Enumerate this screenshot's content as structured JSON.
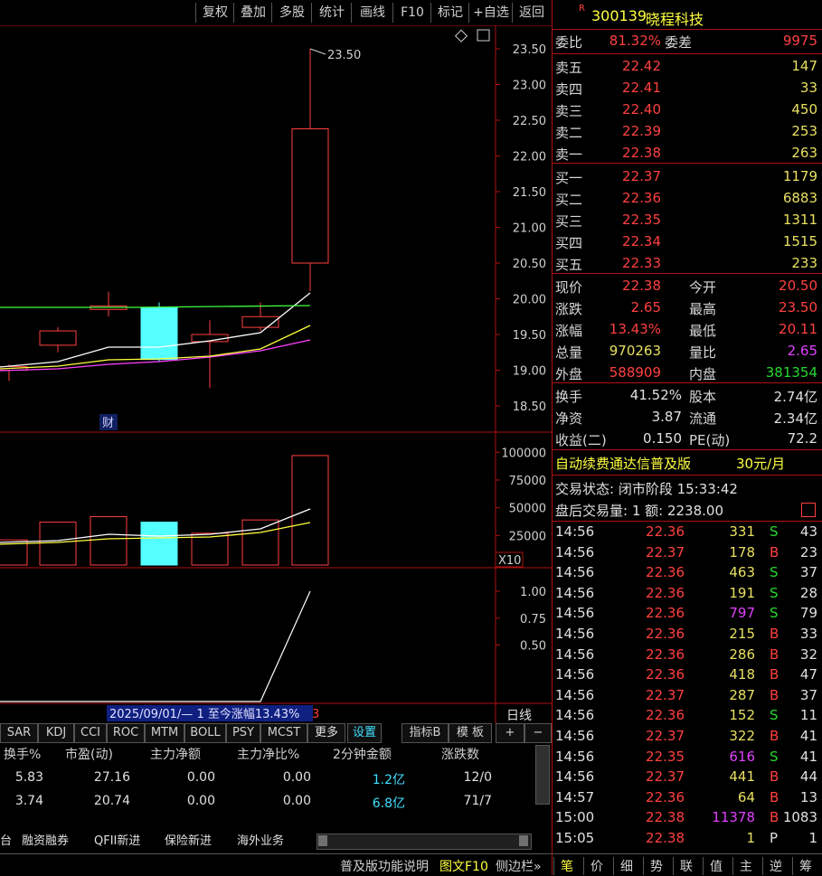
{
  "toolbar": {
    "buttons": [
      "复权",
      "叠加",
      "多股",
      "统计",
      "画线",
      "F10",
      "标记",
      "+自选",
      "返回"
    ]
  },
  "chart": {
    "price_ticks": [
      "23.50",
      "23.00",
      "22.50",
      "22.00",
      "21.50",
      "21.00",
      "20.50",
      "20.00",
      "19.50",
      "19.00",
      "18.50"
    ],
    "high_label": "23.50",
    "finance_badge": "财",
    "volume_ticks": [
      "100000",
      "75000",
      "50000",
      "25000"
    ],
    "volume_unit": "X10",
    "ind_ticks": [
      "1.00",
      "0.75",
      "0.50"
    ],
    "range_label": "2025/09/01/— 1 至今涨幅13.43%",
    "range_suffix": "3",
    "period_label": "日线",
    "colors": {
      "up": "#ff4040",
      "down": "#54ffff",
      "ma1": "#ffffff",
      "ma2": "#ffff40",
      "ma3": "#ff40ff",
      "ma4": "#40ff40"
    }
  },
  "chart_data": {
    "type": "candlestick",
    "candles": [
      {
        "open": 19.0,
        "close": 19.05,
        "high": 19.08,
        "low": 18.85,
        "dir": "up",
        "volume": 21000
      },
      {
        "open": 19.35,
        "close": 19.55,
        "high": 19.6,
        "low": 19.25,
        "dir": "up",
        "volume": 37000
      },
      {
        "open": 19.85,
        "close": 19.9,
        "high": 20.1,
        "low": 19.75,
        "dir": "up",
        "volume": 42000
      },
      {
        "open": 19.88,
        "close": 19.15,
        "high": 19.95,
        "low": 19.12,
        "dir": "down",
        "volume": 37000
      },
      {
        "open": 19.4,
        "close": 19.5,
        "high": 19.7,
        "low": 18.75,
        "dir": "up",
        "volume": 27000
      },
      {
        "open": 19.6,
        "close": 19.75,
        "high": 19.95,
        "low": 19.55,
        "dir": "up",
        "volume": 39000
      },
      {
        "open": 20.5,
        "close": 22.38,
        "high": 23.5,
        "low": 20.11,
        "dir": "up",
        "volume": 97026
      }
    ],
    "volume_ylim": [
      0,
      110000
    ],
    "price_ylim": [
      18.35,
      23.7
    ]
  },
  "quote": {
    "marker": "R",
    "code": "300139",
    "name": "晓程科技",
    "weibi_label": "委比",
    "weibi": "81.32%",
    "weicha_label": "委差",
    "weicha": "9975",
    "sells": [
      {
        "label": "卖五",
        "price": "22.42",
        "vol": "147"
      },
      {
        "label": "卖四",
        "price": "22.41",
        "vol": "33"
      },
      {
        "label": "卖三",
        "price": "22.40",
        "vol": "450"
      },
      {
        "label": "卖二",
        "price": "22.39",
        "vol": "253"
      },
      {
        "label": "卖一",
        "price": "22.38",
        "vol": "263"
      }
    ],
    "buys": [
      {
        "label": "买一",
        "price": "22.37",
        "vol": "1179"
      },
      {
        "label": "买二",
        "price": "22.36",
        "vol": "6883"
      },
      {
        "label": "买三",
        "price": "22.35",
        "vol": "1311"
      },
      {
        "label": "买四",
        "price": "22.34",
        "vol": "1515"
      },
      {
        "label": "买五",
        "price": "22.33",
        "vol": "233"
      }
    ],
    "stats": [
      {
        "l1": "现价",
        "v1": "22.38",
        "c1": "red",
        "l2": "今开",
        "v2": "20.50",
        "c2": "red"
      },
      {
        "l1": "涨跌",
        "v1": "2.65",
        "c1": "red",
        "l2": "最高",
        "v2": "23.50",
        "c2": "red"
      },
      {
        "l1": "涨幅",
        "v1": "13.43%",
        "c1": "red",
        "l2": "最低",
        "v2": "20.11",
        "c2": "red"
      },
      {
        "l1": "总量",
        "v1": "970263",
        "c1": "yellow",
        "l2": "量比",
        "v2": "2.65",
        "c2": "magenta"
      },
      {
        "l1": "外盘",
        "v1": "588909",
        "c1": "red",
        "l2": "内盘",
        "v2": "381354",
        "c2": "green"
      }
    ],
    "fin": [
      {
        "l1": "换手",
        "v1": "41.52%",
        "l2": "股本",
        "v2": "2.74亿"
      },
      {
        "l1": "净资",
        "v1": "3.87",
        "l2": "流通",
        "v2": "2.34亿"
      },
      {
        "l1": "收益(二)",
        "v1": "0.150",
        "l2": "PE(动)",
        "v2": "72.2"
      }
    ],
    "promo": "自动续费通达信普及版",
    "promo_price": "30元/月",
    "trade_status": "交易状态: 闭市阶段 15:33:42",
    "after_hours": "盘后交易量: 1  额: 2238.00"
  },
  "ticks": [
    {
      "t": "14:56",
      "p": "22.36",
      "v": "331",
      "vc": "yellow",
      "s": "S",
      "n": "43"
    },
    {
      "t": "14:56",
      "p": "22.37",
      "v": "178",
      "vc": "yellow",
      "s": "B",
      "n": "23"
    },
    {
      "t": "14:56",
      "p": "22.36",
      "v": "463",
      "vc": "yellow",
      "s": "S",
      "n": "37"
    },
    {
      "t": "14:56",
      "p": "22.36",
      "v": "191",
      "vc": "yellow",
      "s": "S",
      "n": "28"
    },
    {
      "t": "14:56",
      "p": "22.36",
      "v": "797",
      "vc": "magenta",
      "s": "S",
      "n": "79"
    },
    {
      "t": "14:56",
      "p": "22.36",
      "v": "215",
      "vc": "yellow",
      "s": "B",
      "n": "33"
    },
    {
      "t": "14:56",
      "p": "22.36",
      "v": "286",
      "vc": "yellow",
      "s": "B",
      "n": "32"
    },
    {
      "t": "14:56",
      "p": "22.36",
      "v": "418",
      "vc": "yellow",
      "s": "B",
      "n": "47"
    },
    {
      "t": "14:56",
      "p": "22.37",
      "v": "287",
      "vc": "yellow",
      "s": "B",
      "n": "37"
    },
    {
      "t": "14:56",
      "p": "22.36",
      "v": "152",
      "vc": "yellow",
      "s": "S",
      "n": "11"
    },
    {
      "t": "14:56",
      "p": "22.37",
      "v": "322",
      "vc": "yellow",
      "s": "B",
      "n": "41"
    },
    {
      "t": "14:56",
      "p": "22.35",
      "v": "616",
      "vc": "magenta",
      "s": "S",
      "n": "41"
    },
    {
      "t": "14:56",
      "p": "22.37",
      "v": "441",
      "vc": "yellow",
      "s": "B",
      "n": "44"
    },
    {
      "t": "14:57",
      "p": "22.36",
      "v": "64",
      "vc": "yellow",
      "s": "B",
      "n": "13"
    },
    {
      "t": "15:00",
      "p": "22.38",
      "v": "11378",
      "vc": "magenta",
      "s": "B",
      "n": "1083"
    },
    {
      "t": "15:05",
      "p": "22.38",
      "v": "1",
      "vc": "yellow",
      "s": "P",
      "n": "1"
    }
  ],
  "indicator_tabs": [
    "SAR",
    "KDJ",
    "CCI",
    "ROC",
    "MTM",
    "BOLL",
    "PSY",
    "MCST",
    "更多",
    "设置",
    "指标B",
    "模 板",
    "+",
    "−"
  ],
  "table": {
    "headers": [
      "换手%",
      "市盈(动)",
      "主力净额",
      "主力净比%",
      "2分钟金额",
      "涨跌数"
    ],
    "rows": [
      [
        "5.83",
        "27.16",
        "0.00",
        "0.00",
        "1.2亿",
        "12/0"
      ],
      [
        "3.74",
        "20.74",
        "0.00",
        "0.00",
        "6.8亿",
        "71/7"
      ]
    ]
  },
  "bottom_tabs": [
    "台",
    "融资融券",
    "QFII新进",
    "保险新进",
    "海外业务"
  ],
  "statusbar": {
    "left": "普及版功能说明",
    "mid": "图文F10",
    "side": "侧边栏»",
    "right_tabs": [
      "笔",
      "价",
      "细",
      "势",
      "联",
      "值",
      "主",
      "逆",
      "筹"
    ]
  }
}
